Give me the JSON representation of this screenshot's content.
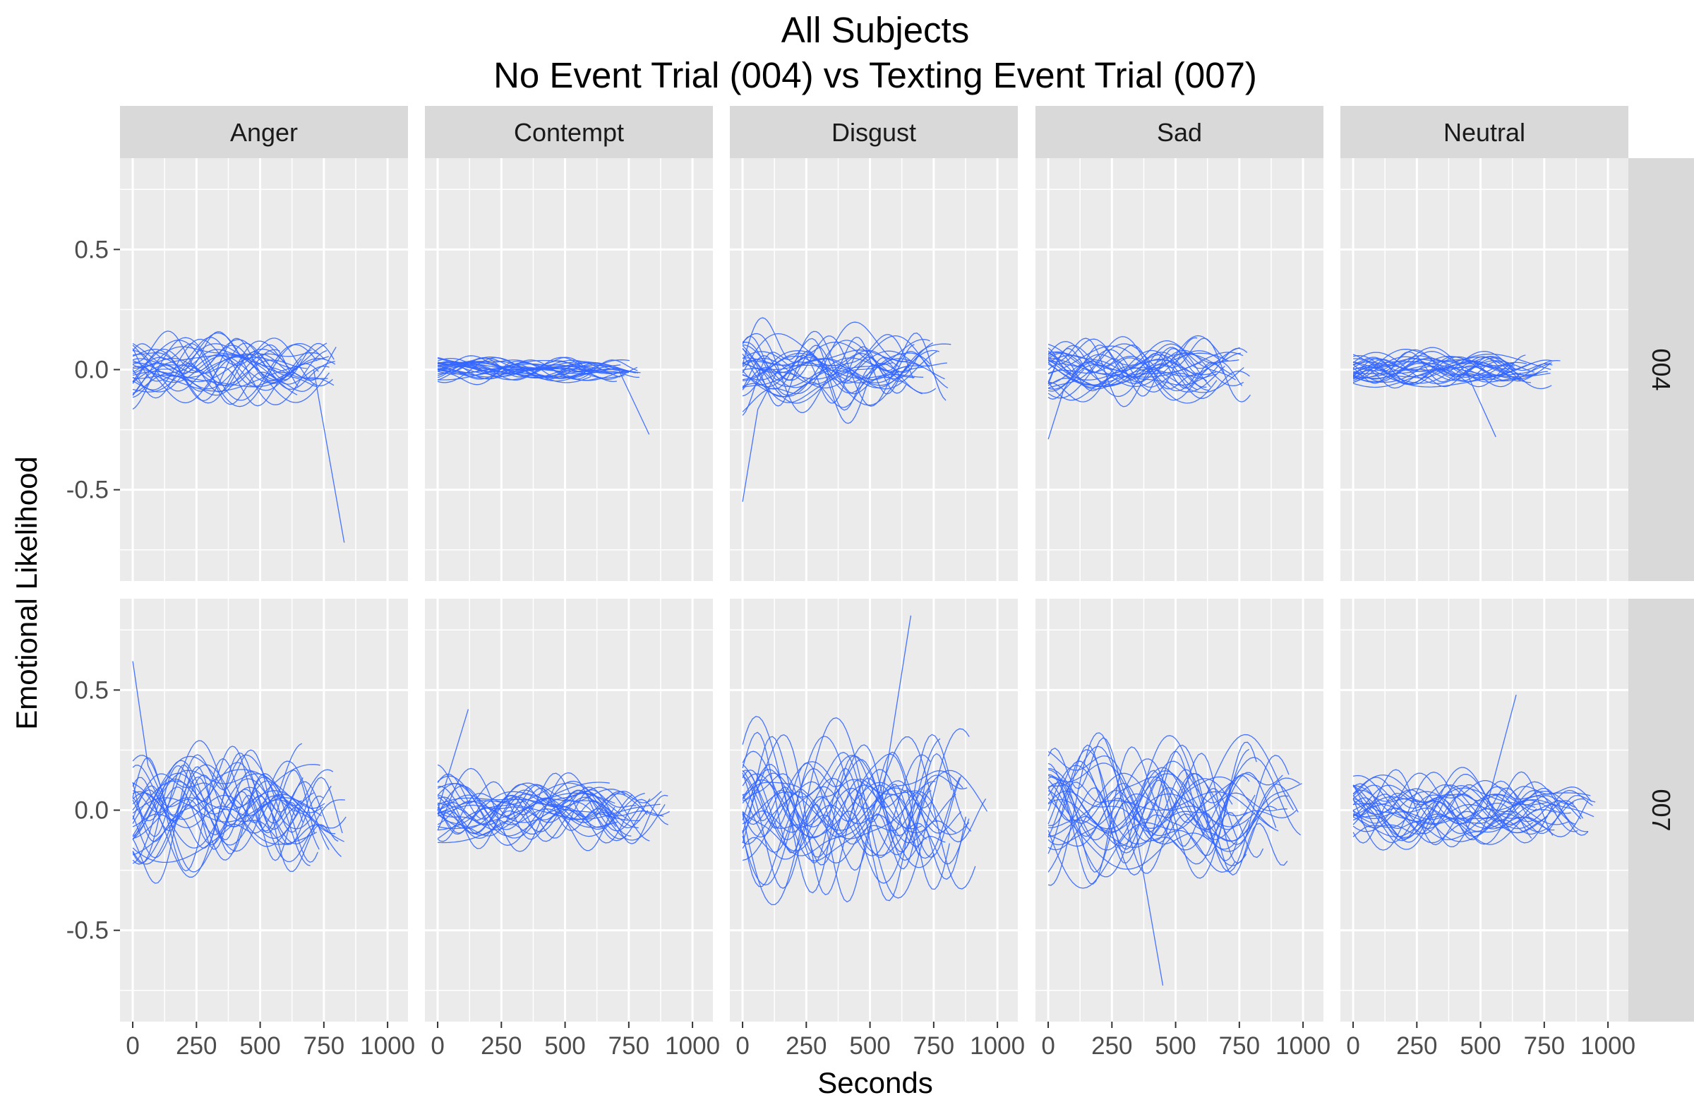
{
  "chart_data": {
    "type": "line",
    "title_line1": "All Subjects",
    "title_line2": "No Event Trial (004) vs Texting Event Trial (007)",
    "xlabel": "Seconds",
    "ylabel": "Emotional Likelihood",
    "xlim": [
      -50,
      1080
    ],
    "ylim": [
      -0.88,
      0.88
    ],
    "x_ticks": [
      0,
      250,
      500,
      750,
      1000
    ],
    "x_tick_labels": [
      "0",
      "250",
      "500",
      "750",
      "1000"
    ],
    "y_ticks": [
      -0.5,
      0.0,
      0.5
    ],
    "y_tick_labels": [
      "-0.5",
      "0.0",
      "0.5"
    ],
    "grid": true,
    "line_color": "#3366FF",
    "columns": [
      "Anger",
      "Contempt",
      "Disgust",
      "Sad",
      "Neutral"
    ],
    "rows": [
      "004",
      "007"
    ],
    "series_per_panel": 30,
    "note": "approximate",
    "panels": [
      {
        "col": "Anger",
        "row": "004",
        "amp": 0.14,
        "xmax": 800,
        "extreme": {
          "x": 830,
          "y": -0.72
        }
      },
      {
        "col": "Contempt",
        "row": "004",
        "amp": 0.05,
        "xmax": 800,
        "extreme": {
          "x": 830,
          "y": -0.27
        }
      },
      {
        "col": "Disgust",
        "row": "004",
        "amp": 0.17,
        "xmax": 820,
        "extreme": {
          "x": 0,
          "y": -0.55
        }
      },
      {
        "col": "Sad",
        "row": "004",
        "amp": 0.12,
        "xmax": 800,
        "extreme": {
          "x": 0,
          "y": -0.29
        }
      },
      {
        "col": "Neutral",
        "row": "004",
        "amp": 0.08,
        "xmax": 820,
        "extreme": {
          "x": 560,
          "y": -0.28
        }
      },
      {
        "col": "Anger",
        "row": "007",
        "amp": 0.25,
        "xmax": 880,
        "extreme": {
          "x": 0,
          "y": 0.62
        }
      },
      {
        "col": "Contempt",
        "row": "007",
        "amp": 0.14,
        "xmax": 920,
        "extreme": {
          "x": 120,
          "y": 0.42
        }
      },
      {
        "col": "Disgust",
        "row": "007",
        "amp": 0.34,
        "xmax": 960,
        "extreme": {
          "x": 660,
          "y": 0.81
        }
      },
      {
        "col": "Sad",
        "row": "007",
        "amp": 0.26,
        "xmax": 1000,
        "extreme": {
          "x": 450,
          "y": -0.73
        }
      },
      {
        "col": "Neutral",
        "row": "007",
        "amp": 0.14,
        "xmax": 960,
        "extreme": {
          "x": 640,
          "y": 0.48
        }
      }
    ]
  }
}
